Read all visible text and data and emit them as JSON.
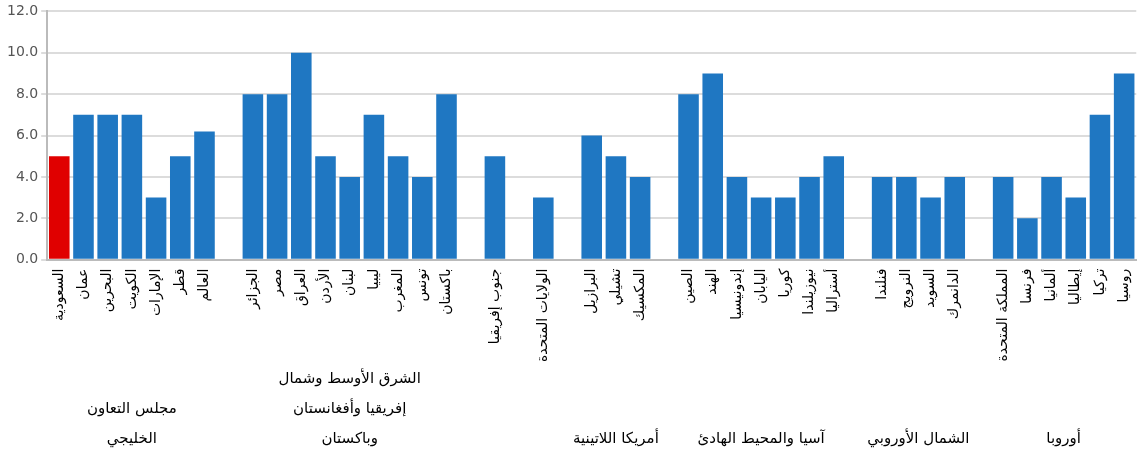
{
  "chart_data": {
    "type": "bar",
    "categories": [
      "السعودية",
      "عمان",
      "البحرين",
      "الكويت",
      "الإمارات",
      "قطر",
      "العالم",
      null,
      "الجزائر",
      "مصر",
      "العراق",
      "الأردن",
      "لبنان",
      "ليبيا",
      "المغرب",
      "تونس",
      "باكستان",
      null,
      "جنوب إفريقيا",
      null,
      "الولايات المتحدة",
      null,
      "البرازيل",
      "تشيلي",
      "المكسيك",
      null,
      "الصين",
      "الهند",
      "إندونيسيا",
      "اليابان",
      "كوريا",
      "نيوزيلندا",
      "أستراليا",
      null,
      "فنلندا",
      "النرويج",
      "السويد",
      "الدانمرك",
      null,
      "المملكة المتحدة",
      "فرنسا",
      "ألمانيا",
      "إيطاليا",
      "تركيا",
      "روسيا"
    ],
    "values": [
      5,
      7,
      7,
      7,
      3,
      5,
      6.2,
      null,
      8,
      8,
      10,
      5,
      4,
      7,
      5,
      4,
      8,
      null,
      5,
      null,
      3,
      null,
      6,
      5,
      4,
      null,
      8,
      9,
      4,
      3,
      3,
      4,
      5,
      null,
      4,
      4,
      3,
      4,
      null,
      4,
      2,
      4,
      3,
      7,
      9
    ],
    "colors": [
      "#e00000",
      "#1f77c2",
      "#1f77c2",
      "#1f77c2",
      "#1f77c2",
      "#1f77c2",
      "#1f77c2",
      null,
      "#1f77c2",
      "#1f77c2",
      "#1f77c2",
      "#1f77c2",
      "#1f77c2",
      "#1f77c2",
      "#1f77c2",
      "#1f77c2",
      "#1f77c2",
      null,
      "#1f77c2",
      null,
      "#1f77c2",
      null,
      "#1f77c2",
      "#1f77c2",
      "#1f77c2",
      null,
      "#1f77c2",
      "#1f77c2",
      "#1f77c2",
      "#1f77c2",
      "#1f77c2",
      "#1f77c2",
      "#1f77c2",
      null,
      "#1f77c2",
      "#1f77c2",
      "#1f77c2",
      "#1f77c2",
      null,
      "#1f77c2",
      "#1f77c2",
      "#1f77c2",
      "#1f77c2",
      "#1f77c2",
      "#1f77c2"
    ],
    "ylim": [
      0,
      12
    ],
    "yticks": [
      {
        "value": 0,
        "label": "0.0"
      },
      {
        "value": 2,
        "label": "2.0"
      },
      {
        "value": 4,
        "label": "4.0"
      },
      {
        "value": 6,
        "label": "6.0"
      },
      {
        "value": 8,
        "label": "8.0"
      },
      {
        "value": 10,
        "label": "10.0"
      },
      {
        "value": 12,
        "label": "12.0"
      }
    ],
    "grid": "y",
    "legend": false,
    "annotations": [
      "مجلس التعاون الخليجي",
      "الشرق الأوسط وشمال إفريقيا وأفغانستان وباكستان",
      "أمريكا اللاتينية",
      "آسيا والمحيط الهادئ",
      "الشمال الأوروبي",
      "أوروبا"
    ]
  }
}
